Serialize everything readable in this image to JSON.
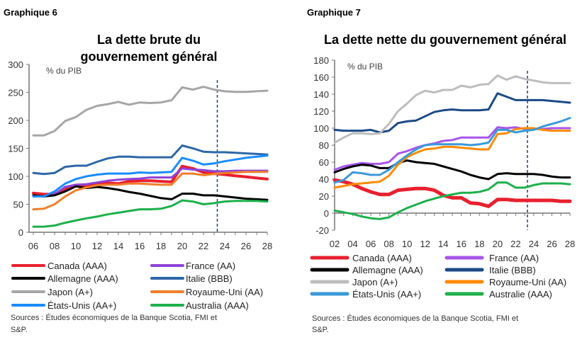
{
  "chart_data": [
    {
      "label": "Graphique 6",
      "title": [
        "La dette brute du",
        "gouvernement général"
      ],
      "type": "line",
      "unit": "% du PIB",
      "ylim": [
        0,
        300
      ],
      "yticks": [
        0,
        50,
        100,
        150,
        200,
        250,
        300
      ],
      "xticks": [
        "06",
        "08",
        "10",
        "12",
        "14",
        "16",
        "18",
        "20",
        "22",
        "24",
        "26",
        "28"
      ],
      "x": [
        2006,
        2007,
        2008,
        2009,
        2010,
        2011,
        2012,
        2013,
        2014,
        2015,
        2016,
        2017,
        2018,
        2019,
        2020,
        2021,
        2022,
        2023,
        2024,
        2025,
        2026,
        2027,
        2028
      ],
      "forecast_marker": 2023.3,
      "grid": false,
      "legend_placement": "bottom",
      "series": [
        {
          "name": "Canada (AAA)",
          "color": "#e8202e",
          "width": 4,
          "values": [
            70,
            68,
            68,
            78,
            83,
            82,
            86,
            88,
            87,
            91,
            92,
            92,
            91,
            90,
            118,
            114,
            107,
            105,
            103,
            101,
            99,
            97,
            95
          ]
        },
        {
          "name": "France (AA)",
          "color": "#8e44d6",
          "width": 3,
          "values": [
            64,
            64,
            68,
            81,
            85,
            86,
            89,
            92,
            94,
            95,
            96,
            98,
            98,
            98,
            114,
            112,
            111,
            109,
            109,
            110,
            110,
            110,
            110
          ]
        },
        {
          "name": "Allemagne (AAA)",
          "color": "#000000",
          "width": 3,
          "values": [
            66,
            64,
            66,
            73,
            82,
            79,
            81,
            79,
            76,
            72,
            69,
            65,
            61,
            59,
            69,
            69,
            66,
            66,
            64,
            62,
            60,
            59,
            58
          ]
        },
        {
          "name": "Italie (BBB)",
          "color": "#2d67a6",
          "width": 3,
          "values": [
            106,
            104,
            106,
            117,
            119,
            119,
            126,
            132,
            135,
            135,
            134,
            134,
            134,
            134,
            155,
            150,
            144,
            143,
            143,
            142,
            141,
            140,
            139
          ]
        },
        {
          "name": "Japon (A+)",
          "color": "#a6a6a6",
          "width": 3,
          "values": [
            173,
            173,
            181,
            199,
            206,
            219,
            226,
            229,
            233,
            228,
            232,
            231,
            232,
            236,
            259,
            255,
            260,
            255,
            252,
            251,
            251,
            252,
            253
          ]
        },
        {
          "name": "Royaume-Uni (AA)",
          "color": "#f07f2a",
          "width": 3,
          "values": [
            41,
            42,
            50,
            64,
            75,
            80,
            84,
            85,
            85,
            87,
            87,
            86,
            85,
            85,
            105,
            105,
            102,
            104,
            106,
            107,
            108,
            108,
            108
          ]
        },
        {
          "name": "États-Unis (AA+)",
          "color": "#1a8cff",
          "width": 3,
          "values": [
            64,
            64,
            73,
            87,
            95,
            100,
            103,
            105,
            105,
            105,
            107,
            106,
            107,
            108,
            133,
            128,
            121,
            123,
            127,
            130,
            133,
            135,
            137
          ]
        },
        {
          "name": "Australia (AAA)",
          "color": "#1db04b",
          "width": 3,
          "values": [
            10,
            10,
            12,
            17,
            21,
            25,
            28,
            32,
            35,
            38,
            41,
            41,
            42,
            47,
            57,
            55,
            50,
            52,
            55,
            56,
            56,
            56,
            55
          ]
        }
      ],
      "source": [
        "Sources : Études économiques de la Banque Scotia, FMI et",
        "S&P."
      ]
    },
    {
      "label": "Graphique 7",
      "title": [
        "La dette nette du gouvernement général"
      ],
      "type": "line",
      "unit": "% du PIB",
      "ylim": [
        -20,
        180
      ],
      "yticks": [
        -20,
        0,
        20,
        40,
        60,
        80,
        100,
        120,
        140,
        160,
        180
      ],
      "xticks": [
        "02",
        "04",
        "06",
        "08",
        "10",
        "12",
        "14",
        "16",
        "18",
        "20",
        "22",
        "24",
        "26",
        "28"
      ],
      "x": [
        2002,
        2003,
        2004,
        2005,
        2006,
        2007,
        2008,
        2009,
        2010,
        2011,
        2012,
        2013,
        2014,
        2015,
        2016,
        2017,
        2018,
        2019,
        2020,
        2021,
        2022,
        2023,
        2024,
        2025,
        2026,
        2027,
        2028
      ],
      "forecast_marker": 2023.3,
      "grid": false,
      "legend_placement": "bottom",
      "series": [
        {
          "name": "Canada (AAA)",
          "color": "#e8202e",
          "width": 5,
          "values": [
            39,
            37,
            34,
            29,
            25,
            22,
            22,
            27,
            28,
            29,
            29,
            27,
            21,
            18,
            18,
            12,
            11,
            8,
            16,
            16,
            15,
            15,
            15,
            15,
            15,
            14,
            14
          ]
        },
        {
          "name": "France (AA)",
          "color": "#a855e8",
          "width": 3,
          "values": [
            51,
            55,
            57,
            59,
            58,
            58,
            60,
            70,
            73,
            77,
            80,
            82,
            85,
            86,
            89,
            89,
            89,
            89,
            101,
            100,
            101,
            99,
            99,
            99,
            100,
            100,
            100
          ]
        },
        {
          "name": "Allemagne (AAA)",
          "color": "#000000",
          "width": 3,
          "values": [
            48,
            52,
            55,
            57,
            56,
            53,
            53,
            59,
            62,
            60,
            59,
            58,
            55,
            52,
            49,
            45,
            42,
            40,
            46,
            47,
            46,
            46,
            46,
            45,
            43,
            42,
            42
          ]
        },
        {
          "name": "Italie (BBB)",
          "color": "#1c4a85",
          "width": 3,
          "values": [
            98,
            97,
            97,
            97,
            98,
            95,
            97,
            106,
            108,
            109,
            114,
            119,
            121,
            122,
            121,
            121,
            121,
            122,
            141,
            137,
            133,
            133,
            133,
            133,
            132,
            131,
            130
          ]
        },
        {
          "name": "Japon (A+)",
          "color": "#bdbdbd",
          "width": 3,
          "values": [
            83,
            89,
            94,
            94,
            93,
            94,
            105,
            120,
            129,
            139,
            144,
            142,
            145,
            145,
            150,
            148,
            151,
            152,
            162,
            157,
            161,
            158,
            156,
            154,
            153,
            153,
            153
          ]
        },
        {
          "name": "Royaume-Uni (AA)",
          "color": "#ff8a00",
          "width": 3,
          "values": [
            30,
            32,
            34,
            35,
            36,
            37,
            44,
            57,
            66,
            71,
            75,
            76,
            78,
            78,
            77,
            76,
            75,
            75,
            93,
            94,
            99,
            100,
            100,
            98,
            97,
            97,
            97
          ]
        },
        {
          "name": "États-Unis (AA+)",
          "color": "#3a9ad9",
          "width": 3,
          "values": [
            36,
            39,
            48,
            47,
            45,
            45,
            51,
            60,
            68,
            75,
            80,
            81,
            81,
            81,
            81,
            80,
            81,
            83,
            98,
            98,
            95,
            97,
            98,
            102,
            105,
            108,
            112
          ]
        },
        {
          "name": "Australie (AAA)",
          "color": "#1db04b",
          "width": 3,
          "values": [
            3,
            1,
            -1,
            -4,
            -6,
            -7,
            -5,
            1,
            6,
            10,
            14,
            17,
            20,
            22,
            24,
            24,
            25,
            28,
            36,
            36,
            30,
            30,
            33,
            35,
            35,
            35,
            34
          ]
        }
      ],
      "source": [
        "Sources : Études économiques de la Banque Scotia, FMI et",
        "S&P."
      ]
    }
  ]
}
